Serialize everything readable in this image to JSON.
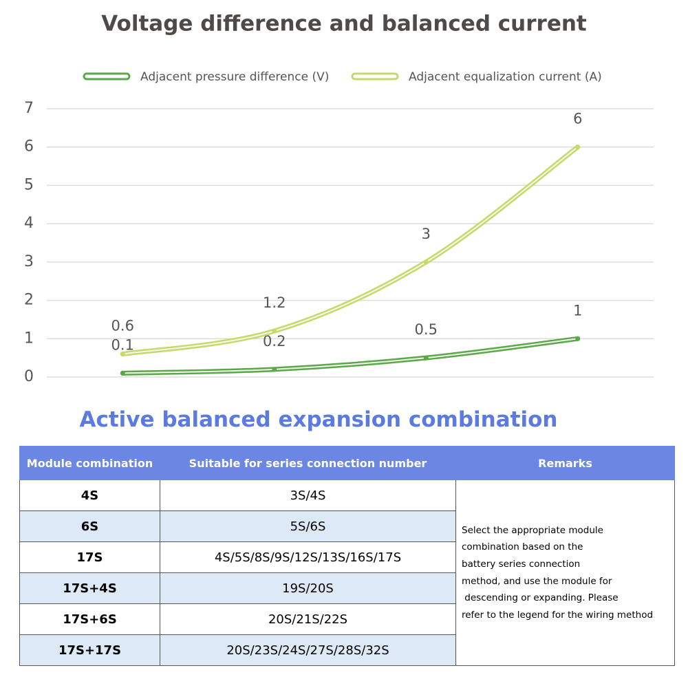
{
  "chart_data": {
    "type": "line",
    "title": "Voltage difference and balanced current",
    "categories": [
      null,
      null,
      null,
      null
    ],
    "series": [
      {
        "name": "Adjacent pressure difference (V)",
        "color": "#5aa84a",
        "values": [
          0.1,
          0.2,
          0.5,
          1
        ]
      },
      {
        "name": "Adjacent equalization current (A)",
        "color": "#c6d96b",
        "values": [
          0.6,
          1.2,
          3,
          6
        ]
      }
    ],
    "ylim": [
      0,
      7
    ],
    "yticks": [
      0,
      1,
      2,
      3,
      4,
      5,
      6,
      7
    ],
    "grid": true,
    "legend": "top"
  },
  "table": {
    "title": "Active balanced expansion combination",
    "header": [
      "Module combination",
      "Suitable for series connection number",
      "Remarks"
    ],
    "rows": [
      [
        "4S",
        "3S/4S"
      ],
      [
        "6S",
        "5S/6S"
      ],
      [
        "17S",
        "4S/5S/8S/9S/12S/13S/16S/17S"
      ],
      [
        "17S+4S",
        "19S/20S"
      ],
      [
        "17S+6S",
        "20S/21S/22S"
      ],
      [
        "17S+17S",
        "20S/23S/24S/27S/28S/32S"
      ]
    ],
    "remarks": [
      "Select the appropriate module",
      "combination based on the",
      "battery series connection",
      "method, and use the module for",
      " descending or expanding. Please",
      "refer to the legend for the wiring method"
    ]
  }
}
